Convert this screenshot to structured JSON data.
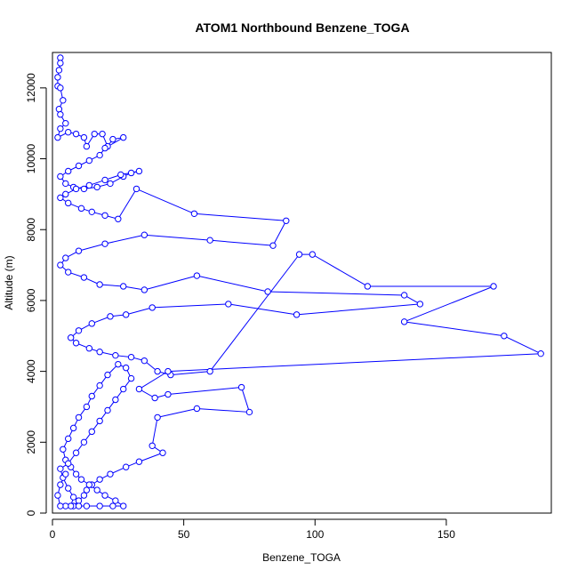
{
  "chart_data": {
    "type": "scatter",
    "title": "ATOM1 Northbound Benzene_TOGA",
    "xlabel": "Benzene_TOGA",
    "ylabel": "Altitude (m)",
    "xlim": [
      0,
      190
    ],
    "ylim": [
      0,
      13000
    ],
    "x_ticks": [
      0,
      50,
      100,
      150
    ],
    "y_ticks": [
      0,
      2000,
      4000,
      6000,
      8000,
      10000,
      12000
    ],
    "grid": false,
    "legend": "none",
    "series_color": "#0000ff",
    "series": [
      {
        "values": [
          [
            3,
            12850
          ],
          [
            3,
            12700
          ],
          [
            2.5,
            12500
          ],
          [
            2,
            12300
          ],
          [
            2,
            12050
          ],
          [
            3,
            12000
          ],
          [
            4,
            11650
          ],
          [
            2.5,
            11400
          ],
          [
            3,
            11250
          ],
          [
            5,
            11000
          ],
          [
            3,
            10850
          ],
          [
            2,
            10600
          ],
          [
            6,
            10750
          ],
          [
            9,
            10700
          ],
          [
            12,
            10600
          ],
          [
            13,
            10350
          ],
          [
            16,
            10700
          ],
          [
            19,
            10700
          ],
          [
            21,
            10350
          ],
          [
            23,
            10550
          ],
          [
            27,
            10600
          ],
          [
            20,
            10300
          ],
          [
            18,
            10100
          ],
          [
            14,
            9950
          ],
          [
            10,
            9800
          ],
          [
            6,
            9650
          ],
          [
            3,
            9500
          ],
          [
            5,
            9300
          ],
          [
            8,
            9200
          ],
          [
            12,
            9150
          ],
          [
            17,
            9200
          ],
          [
            22,
            9300
          ],
          [
            27,
            9500
          ],
          [
            30,
            9600
          ],
          [
            33,
            9650
          ],
          [
            26,
            9550
          ],
          [
            20,
            9400
          ],
          [
            14,
            9250
          ],
          [
            9,
            9150
          ],
          [
            5,
            9000
          ],
          [
            3,
            8900
          ],
          [
            6,
            8750
          ],
          [
            11,
            8600
          ],
          [
            15,
            8500
          ],
          [
            20,
            8400
          ],
          [
            25,
            8300
          ],
          [
            32,
            9150
          ],
          [
            54,
            8450
          ],
          [
            89,
            8250
          ],
          [
            84,
            7550
          ],
          [
            60,
            7700
          ],
          [
            35,
            7850
          ],
          [
            20,
            7600
          ],
          [
            10,
            7400
          ],
          [
            5,
            7200
          ],
          [
            3,
            7000
          ],
          [
            6,
            6800
          ],
          [
            12,
            6650
          ],
          [
            18,
            6450
          ],
          [
            27,
            6400
          ],
          [
            35,
            6300
          ],
          [
            55,
            6700
          ],
          [
            82,
            6250
          ],
          [
            134,
            6150
          ],
          [
            140,
            5900
          ],
          [
            93,
            5600
          ],
          [
            67,
            5900
          ],
          [
            38,
            5800
          ],
          [
            28,
            5600
          ],
          [
            22,
            5550
          ],
          [
            15,
            5350
          ],
          [
            10,
            5150
          ],
          [
            7,
            4950
          ],
          [
            9,
            4800
          ],
          [
            14,
            4650
          ],
          [
            18,
            4550
          ],
          [
            24,
            4450
          ],
          [
            30,
            4400
          ],
          [
            35,
            4300
          ],
          [
            40,
            4000
          ],
          [
            45,
            3900
          ],
          [
            60,
            4000
          ],
          [
            94,
            7300
          ],
          [
            99,
            7300
          ],
          [
            120,
            6400
          ],
          [
            168,
            6400
          ],
          [
            134,
            5400
          ],
          [
            172,
            5000
          ],
          [
            186,
            4500
          ],
          [
            44,
            4000
          ],
          [
            33,
            3500
          ],
          [
            39,
            3250
          ],
          [
            44,
            3350
          ],
          [
            72,
            3550
          ],
          [
            75,
            2850
          ],
          [
            55,
            2950
          ],
          [
            40,
            2700
          ],
          [
            38,
            1900
          ],
          [
            42,
            1700
          ],
          [
            33,
            1450
          ],
          [
            28,
            1300
          ],
          [
            22,
            1100
          ],
          [
            18,
            950
          ],
          [
            15,
            800
          ],
          [
            13,
            650
          ],
          [
            12,
            500
          ],
          [
            10,
            350
          ],
          [
            8,
            200
          ],
          [
            10,
            200
          ],
          [
            13,
            200
          ],
          [
            18,
            200
          ],
          [
            23,
            200
          ],
          [
            27,
            200
          ],
          [
            24,
            350
          ],
          [
            20,
            500
          ],
          [
            17,
            650
          ],
          [
            14,
            800
          ],
          [
            11,
            950
          ],
          [
            9,
            1100
          ],
          [
            7,
            1300
          ],
          [
            5,
            1500
          ],
          [
            4,
            1800
          ],
          [
            6,
            2100
          ],
          [
            8,
            2400
          ],
          [
            10,
            2700
          ],
          [
            13,
            3000
          ],
          [
            15,
            3300
          ],
          [
            18,
            3600
          ],
          [
            21,
            3900
          ],
          [
            25,
            4200
          ],
          [
            28,
            4100
          ],
          [
            30,
            3800
          ],
          [
            27,
            3500
          ],
          [
            24,
            3200
          ],
          [
            21,
            2900
          ],
          [
            18,
            2600
          ],
          [
            15,
            2300
          ],
          [
            12,
            2000
          ],
          [
            9,
            1700
          ],
          [
            6,
            1400
          ],
          [
            3,
            1250
          ],
          [
            4,
            1000
          ],
          [
            6,
            700
          ],
          [
            8,
            450
          ],
          [
            7,
            200
          ],
          [
            5,
            200
          ],
          [
            3,
            200
          ],
          [
            2,
            500
          ],
          [
            3,
            800
          ],
          [
            5,
            1100
          ]
        ]
      }
    ]
  }
}
